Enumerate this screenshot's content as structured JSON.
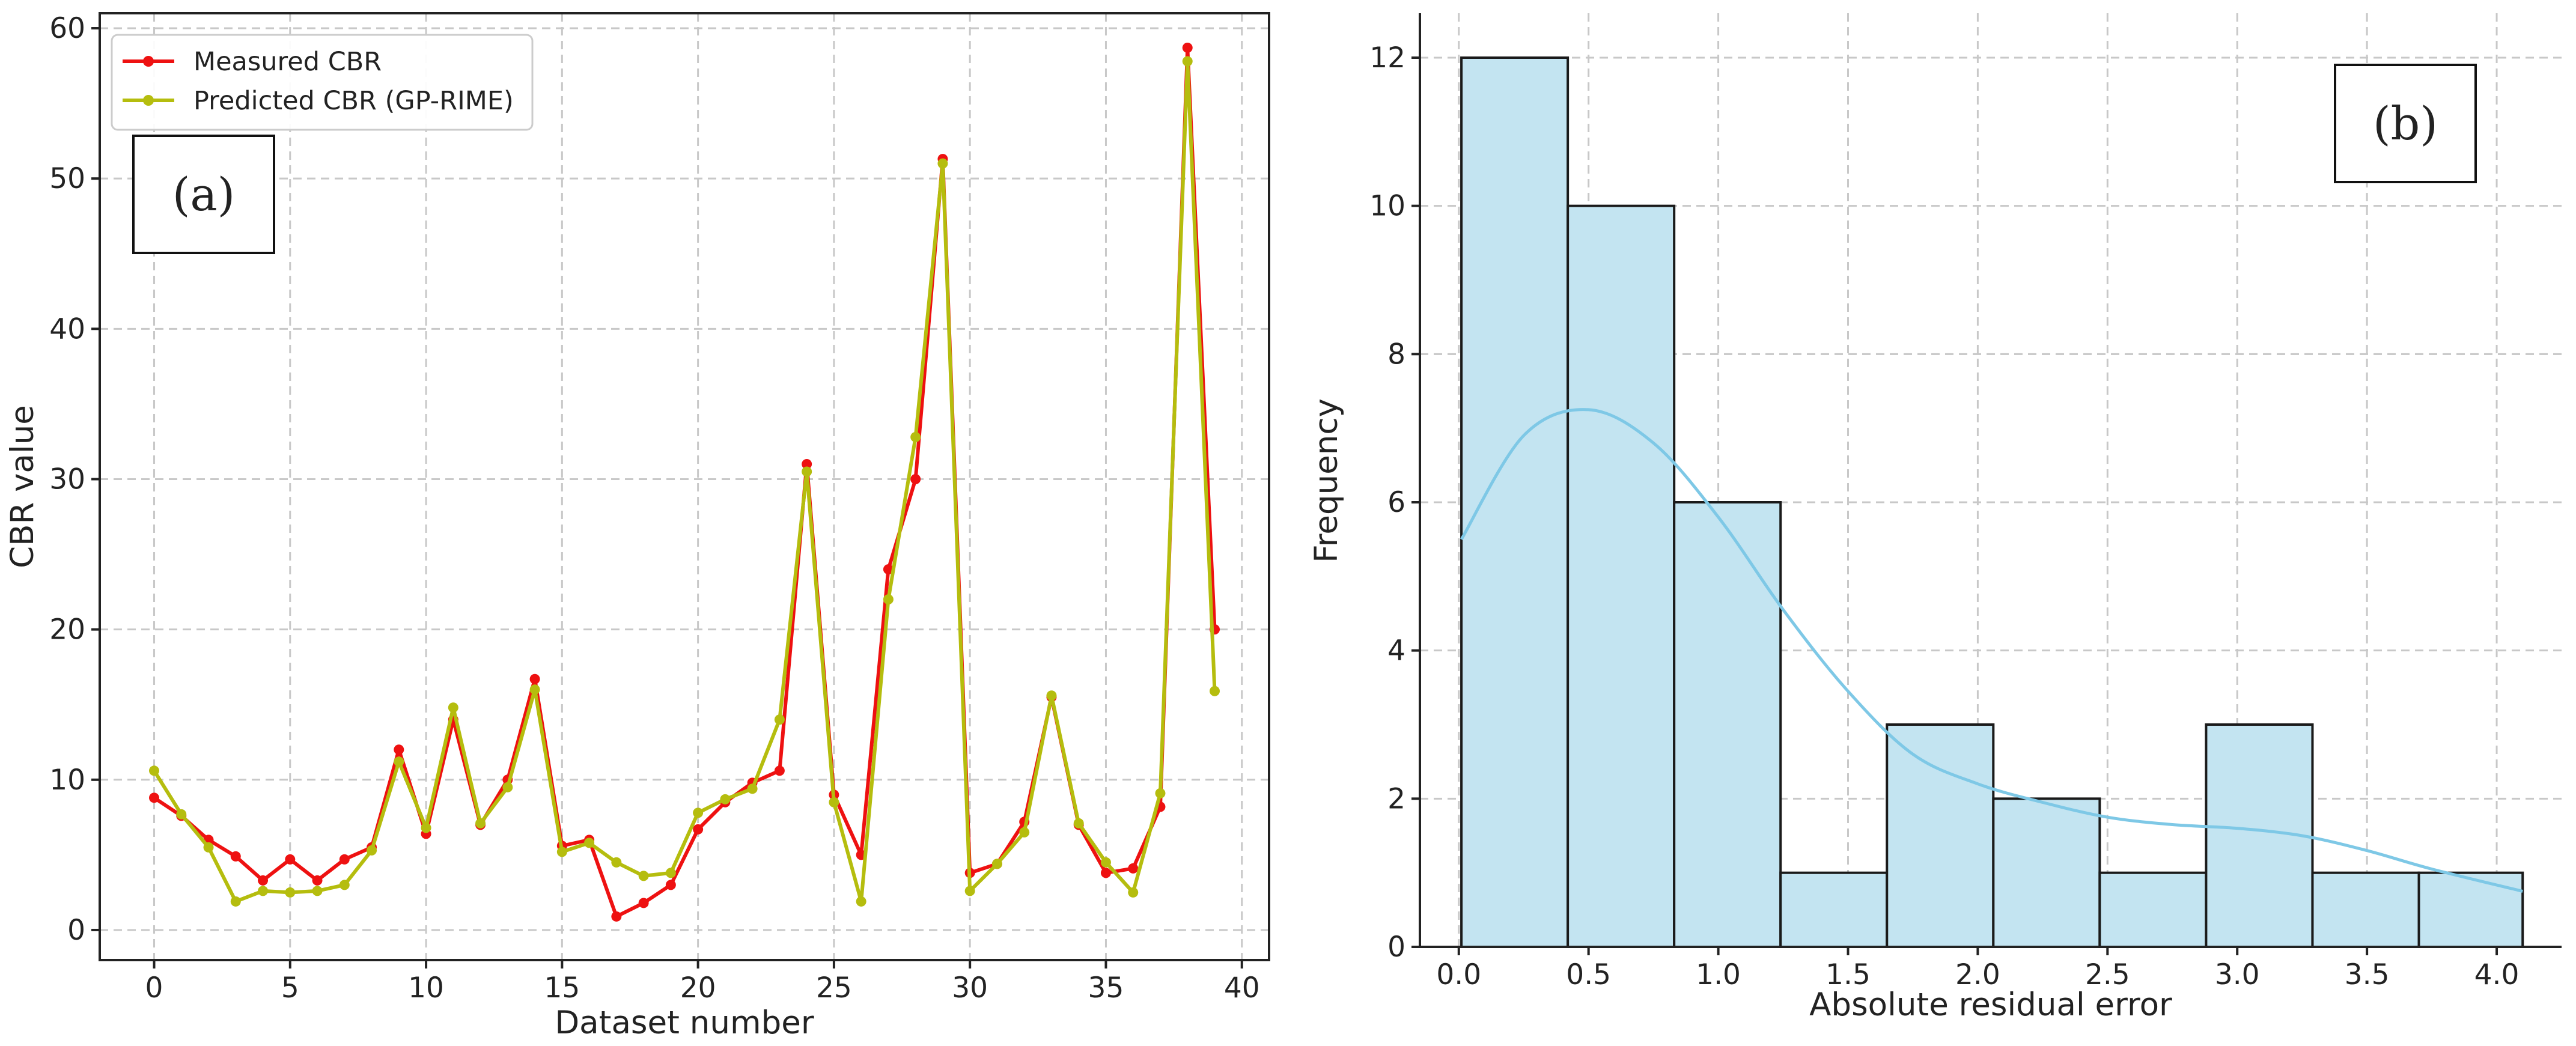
{
  "chart_data": [
    {
      "type": "line",
      "panel_label": "(a)",
      "title": "",
      "xlabel": "Dataset number",
      "ylabel": "CBR value",
      "xlim": [
        -2,
        41
      ],
      "ylim": [
        -2,
        61
      ],
      "xticks": [
        0,
        5,
        10,
        15,
        20,
        25,
        30,
        35,
        40
      ],
      "yticks": [
        0,
        10,
        20,
        30,
        40,
        50,
        60
      ],
      "grid": true,
      "legend_position": "top-left",
      "x": [
        0,
        1,
        2,
        3,
        4,
        5,
        6,
        7,
        8,
        9,
        10,
        11,
        12,
        13,
        14,
        15,
        16,
        17,
        18,
        19,
        20,
        21,
        22,
        23,
        24,
        25,
        26,
        27,
        28,
        29,
        30,
        31,
        32,
        33,
        34,
        35,
        36,
        37,
        38,
        39
      ],
      "series": [
        {
          "name": "Measured CBR",
          "color": "#ee1111",
          "values": [
            8.8,
            7.6,
            6.0,
            4.9,
            3.3,
            4.7,
            3.3,
            4.7,
            5.5,
            12.0,
            6.4,
            14.0,
            7.0,
            10.0,
            16.7,
            5.6,
            6.0,
            0.9,
            1.8,
            3.0,
            6.7,
            8.5,
            9.8,
            10.6,
            31.0,
            9.0,
            5.0,
            24.0,
            30.0,
            51.3,
            3.8,
            4.4,
            7.2,
            15.5,
            7.0,
            3.8,
            4.1,
            8.2,
            58.7,
            20.0
          ]
        },
        {
          "name": "Predicted CBR (GP-RIME)",
          "color": "#b5bd0e",
          "values": [
            10.6,
            7.7,
            5.5,
            1.9,
            2.6,
            2.5,
            2.6,
            3.0,
            5.3,
            11.2,
            6.8,
            14.8,
            7.1,
            9.5,
            16.0,
            5.2,
            5.8,
            4.5,
            3.6,
            3.8,
            7.8,
            8.7,
            9.4,
            14.0,
            30.5,
            8.5,
            1.9,
            22.0,
            32.8,
            51.0,
            2.6,
            4.4,
            6.5,
            15.6,
            7.1,
            4.5,
            2.5,
            9.1,
            57.8,
            15.9
          ]
        }
      ]
    },
    {
      "type": "bar",
      "subtype": "histogram",
      "panel_label": "(b)",
      "title": "",
      "xlabel": "Absolute residual error",
      "ylabel": "Frequency",
      "xlim": [
        -0.15,
        4.25
      ],
      "ylim": [
        0,
        12.6
      ],
      "xticks": [
        0.0,
        0.5,
        1.0,
        1.5,
        2.0,
        2.5,
        3.0,
        3.5,
        4.0
      ],
      "xtick_labels": [
        "0.0",
        "0.5",
        "1.0",
        "1.5",
        "2.0",
        "2.5",
        "3.0",
        "3.5",
        "4.0"
      ],
      "yticks": [
        0,
        2,
        4,
        6,
        8,
        10,
        12
      ],
      "grid": true,
      "bar_color": "#c3e4f1",
      "edge_color": "#1a1a1a",
      "bin_edges": [
        0.01,
        0.42,
        0.83,
        1.24,
        1.65,
        2.06,
        2.47,
        2.88,
        3.29,
        3.7,
        4.1
      ],
      "counts": [
        12,
        10,
        6,
        1,
        3,
        2,
        1,
        3,
        1,
        1
      ],
      "kde": {
        "color": "#7ec8e6",
        "x": [
          0.01,
          0.25,
          0.5,
          0.75,
          1.0,
          1.25,
          1.5,
          1.75,
          2.0,
          2.25,
          2.5,
          2.75,
          3.0,
          3.25,
          3.5,
          3.75,
          4.1
        ],
        "y": [
          5.5,
          6.9,
          7.25,
          6.8,
          5.8,
          4.55,
          3.45,
          2.6,
          2.2,
          1.95,
          1.75,
          1.65,
          1.6,
          1.5,
          1.3,
          1.05,
          0.75
        ]
      }
    }
  ]
}
